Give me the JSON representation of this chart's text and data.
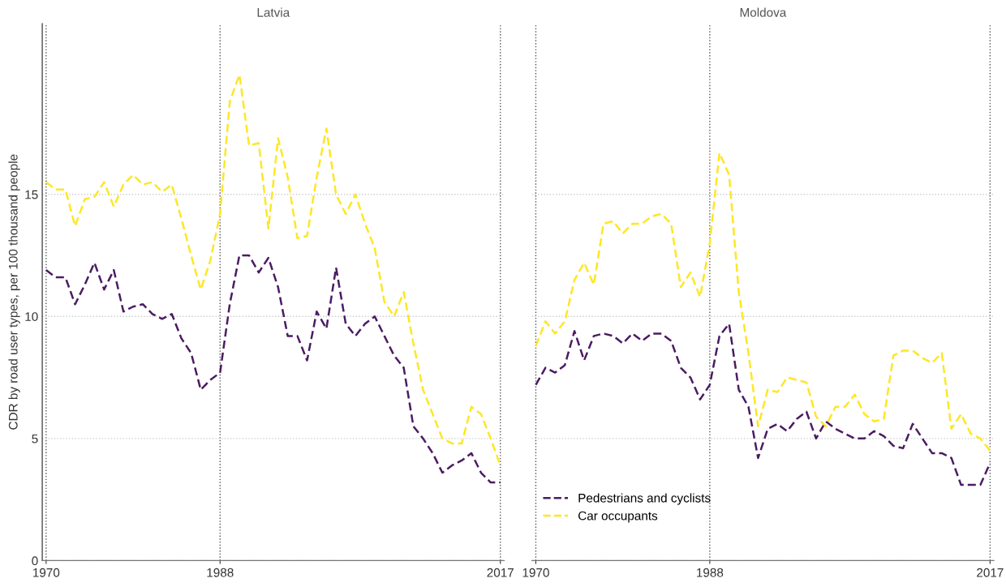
{
  "chart_data": [
    {
      "type": "line",
      "title": "Latvia",
      "ylabel": "CDR by road user types, per 100 thousand people",
      "x": [
        1970,
        1971,
        1972,
        1973,
        1974,
        1975,
        1976,
        1977,
        1978,
        1979,
        1980,
        1981,
        1982,
        1983,
        1984,
        1985,
        1986,
        1987,
        1988,
        1989,
        1990,
        1991,
        1992,
        1993,
        1994,
        1995,
        1996,
        1997,
        1998,
        1999,
        2000,
        2001,
        2002,
        2003,
        2004,
        2005,
        2006,
        2007,
        2008,
        2009,
        2010,
        2011,
        2012,
        2013,
        2014,
        2015,
        2016,
        2017
      ],
      "series": [
        {
          "color": "#4b1c62",
          "values": [
            11.9,
            11.6,
            11.6,
            10.5,
            11.3,
            12.2,
            11.1,
            11.9,
            10.2,
            10.4,
            10.5,
            10.1,
            9.9,
            10.1,
            9.1,
            8.5,
            7.0,
            7.4,
            7.7,
            10.5,
            12.5,
            12.5,
            11.8,
            12.4,
            11.2,
            9.2,
            9.2,
            8.2,
            10.2,
            9.5,
            12.0,
            9.7,
            9.2,
            9.7,
            10.0,
            9.2,
            8.4,
            7.9,
            5.5,
            5.0,
            4.4,
            3.6,
            3.9,
            4.1,
            4.4,
            3.6,
            3.2,
            3.2
          ]
        },
        {
          "color": "#fde725",
          "values": [
            15.5,
            15.2,
            15.2,
            13.7,
            14.8,
            14.9,
            15.5,
            14.5,
            15.4,
            15.8,
            15.4,
            15.5,
            15.1,
            15.4,
            14.0,
            12.5,
            11.1,
            12.3,
            14.2,
            18.8,
            19.9,
            17.0,
            17.1,
            13.6,
            17.3,
            15.7,
            13.2,
            13.3,
            15.7,
            17.7,
            15.0,
            14.2,
            15.0,
            13.8,
            12.8,
            10.6,
            10.0,
            11.0,
            8.9,
            7.0,
            6.0,
            5.0,
            4.8,
            4.8,
            6.3,
            6.0,
            5.0,
            3.9
          ]
        }
      ],
      "xlim": [
        1969.6,
        2017.4
      ],
      "ylim": [
        0,
        22
      ],
      "xticks": [
        1970,
        1988,
        2017
      ],
      "yticks": [
        0,
        5,
        10,
        15
      ],
      "grid": true,
      "line_style": "dashed",
      "legend": false
    },
    {
      "type": "line",
      "title": "Moldova",
      "x": [
        1970,
        1971,
        1972,
        1973,
        1974,
        1975,
        1976,
        1977,
        1978,
        1979,
        1980,
        1981,
        1982,
        1983,
        1984,
        1985,
        1986,
        1987,
        1988,
        1989,
        1990,
        1991,
        1992,
        1993,
        1994,
        1995,
        1996,
        1997,
        1998,
        1999,
        2000,
        2001,
        2002,
        2003,
        2004,
        2005,
        2006,
        2007,
        2008,
        2009,
        2010,
        2011,
        2012,
        2013,
        2014,
        2015,
        2016,
        2017
      ],
      "series": [
        {
          "name": "Pedestrians and cyclists",
          "color": "#4b1c62",
          "values": [
            7.2,
            7.9,
            7.7,
            8.0,
            9.4,
            8.2,
            9.2,
            9.3,
            9.2,
            8.9,
            9.3,
            9.0,
            9.3,
            9.3,
            9.0,
            7.9,
            7.5,
            6.6,
            7.2,
            9.2,
            9.7,
            7.0,
            6.3,
            4.2,
            5.4,
            5.6,
            5.3,
            5.8,
            6.1,
            5.0,
            5.7,
            5.4,
            5.2,
            5.0,
            5.0,
            5.3,
            5.1,
            4.7,
            4.6,
            5.6,
            5.0,
            4.4,
            4.4,
            4.2,
            3.1,
            3.1,
            3.1,
            4.0
          ]
        },
        {
          "name": "Car occupants",
          "color": "#fde725",
          "values": [
            8.8,
            9.8,
            9.3,
            9.8,
            11.5,
            12.2,
            11.3,
            13.8,
            13.9,
            13.4,
            13.8,
            13.8,
            14.1,
            14.2,
            13.8,
            11.2,
            11.8,
            10.8,
            13.0,
            16.7,
            15.8,
            11.0,
            8.5,
            5.5,
            7.0,
            6.9,
            7.5,
            7.4,
            7.3,
            5.9,
            5.5,
            6.3,
            6.3,
            6.8,
            6.0,
            5.7,
            5.8,
            8.4,
            8.6,
            8.6,
            8.3,
            8.1,
            8.5,
            5.4,
            6.0,
            5.2,
            5.0,
            4.5
          ]
        }
      ],
      "xlim": [
        1969.6,
        2017.4
      ],
      "ylim": [
        0,
        22
      ],
      "xticks": [
        1970,
        1988,
        2017
      ],
      "yticks": [
        0,
        5,
        10,
        15
      ],
      "grid": true,
      "line_style": "dashed",
      "legend": "bottom left",
      "tick_labels": "x"
    }
  ]
}
